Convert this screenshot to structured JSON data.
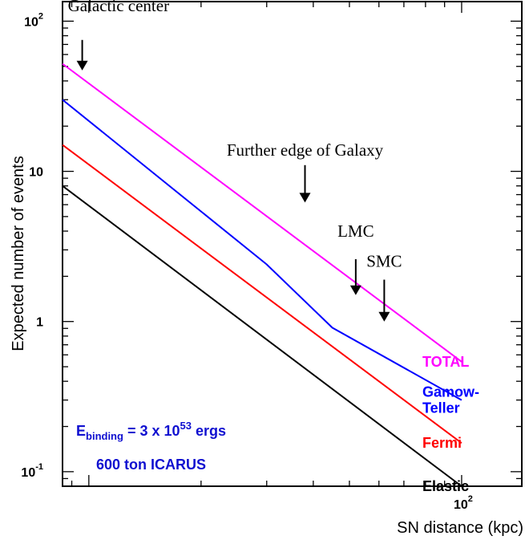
{
  "chart_data": {
    "type": "line",
    "xlabel": "SN distance (kpc)",
    "ylabel": "Expected number of events",
    "x_scale": "log",
    "y_scale": "log",
    "xlim": [
      8.5,
      145
    ],
    "ylim": [
      0.08,
      135
    ],
    "x_tick_labels": [
      {
        "value": 100,
        "base": "10",
        "exp": "2"
      }
    ],
    "y_tick_labels": [
      {
        "value": 0.1,
        "base": "10",
        "exp": "-1"
      },
      {
        "value": 1,
        "base": "1",
        "exp": ""
      },
      {
        "value": 10,
        "base": "10",
        "exp": ""
      },
      {
        "value": 100,
        "base": "10",
        "exp": "2"
      }
    ],
    "series": [
      {
        "name": "TOTAL",
        "color": "#ff00ff",
        "x": [
          8.5,
          100
        ],
        "y": [
          52,
          0.54
        ]
      },
      {
        "name": "Gamow-Teller",
        "label_lines": [
          "Gamow-",
          "Teller"
        ],
        "color": "#0000ff",
        "x": [
          8.5,
          30,
          45,
          100
        ],
        "y": [
          30,
          2.4,
          0.91,
          0.3
        ]
      },
      {
        "name": "Fermi",
        "color": "#ff0000",
        "x": [
          8.5,
          100
        ],
        "y": [
          15,
          0.155
        ]
      },
      {
        "name": "Elastic",
        "color": "#000000",
        "x": [
          8.5,
          100
        ],
        "y": [
          8,
          0.08
        ]
      }
    ],
    "annotations": [
      {
        "text": "Galactic center",
        "arrow_x": 9.6,
        "arrow_y_top": 75,
        "arrow_y_bottom": 47
      },
      {
        "text": "Further edge of Galaxy",
        "arrow_x": 38,
        "arrow_y_top": 11,
        "arrow_y_bottom": 6.2
      },
      {
        "text": "LMC",
        "arrow_x": 52,
        "arrow_y_top": 2.6,
        "arrow_y_bottom": 1.5
      },
      {
        "text": "SMC",
        "arrow_x": 62,
        "arrow_y_top": 1.9,
        "arrow_y_bottom": 1.0
      }
    ],
    "info": {
      "energy_base": "E",
      "energy_sub": "binding",
      "energy_eq": " = 3 x 10",
      "energy_exp": "53",
      "energy_unit": " ergs",
      "detector": "600 ton ICARUS"
    }
  }
}
